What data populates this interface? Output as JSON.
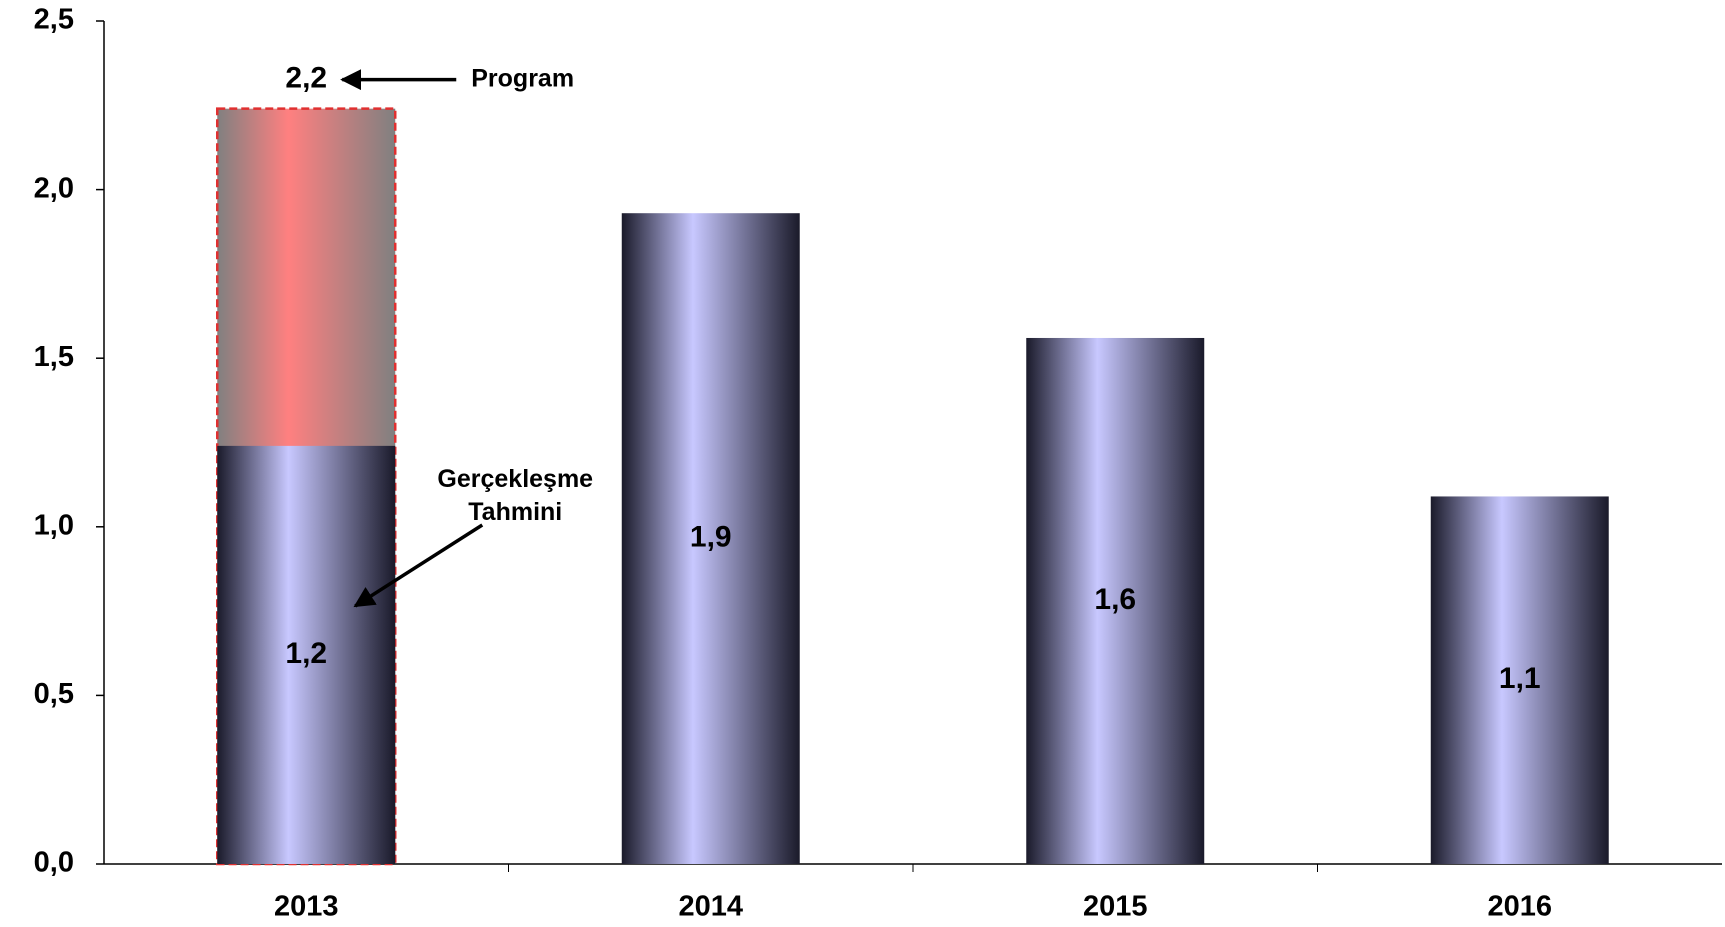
{
  "chart_data": {
    "type": "bar",
    "categories": [
      "2013",
      "2014",
      "2015",
      "2016"
    ],
    "series": [
      {
        "name": "Program",
        "color": "#ff8080",
        "values": [
          2.24,
          null,
          null,
          null
        ],
        "value_labels": [
          "2,2",
          null,
          null,
          null
        ]
      },
      {
        "name": "Gerçekleşme Tahmini",
        "color": "#c8c8ff",
        "values": [
          1.24,
          1.93,
          1.56,
          1.09
        ],
        "value_labels": [
          "1,2",
          "1,9",
          "1,6",
          "1,1"
        ]
      }
    ],
    "ylim": [
      0,
      2.5
    ],
    "yticks": [
      {
        "value": 0,
        "label": "0,0"
      },
      {
        "value": 0.5,
        "label": "0,5"
      },
      {
        "value": 1,
        "label": "1,0"
      },
      {
        "value": 1.5,
        "label": "1,5"
      },
      {
        "value": 2,
        "label": "2,0"
      },
      {
        "value": 2.5,
        "label": "2,5"
      }
    ],
    "grid": false
  }
}
